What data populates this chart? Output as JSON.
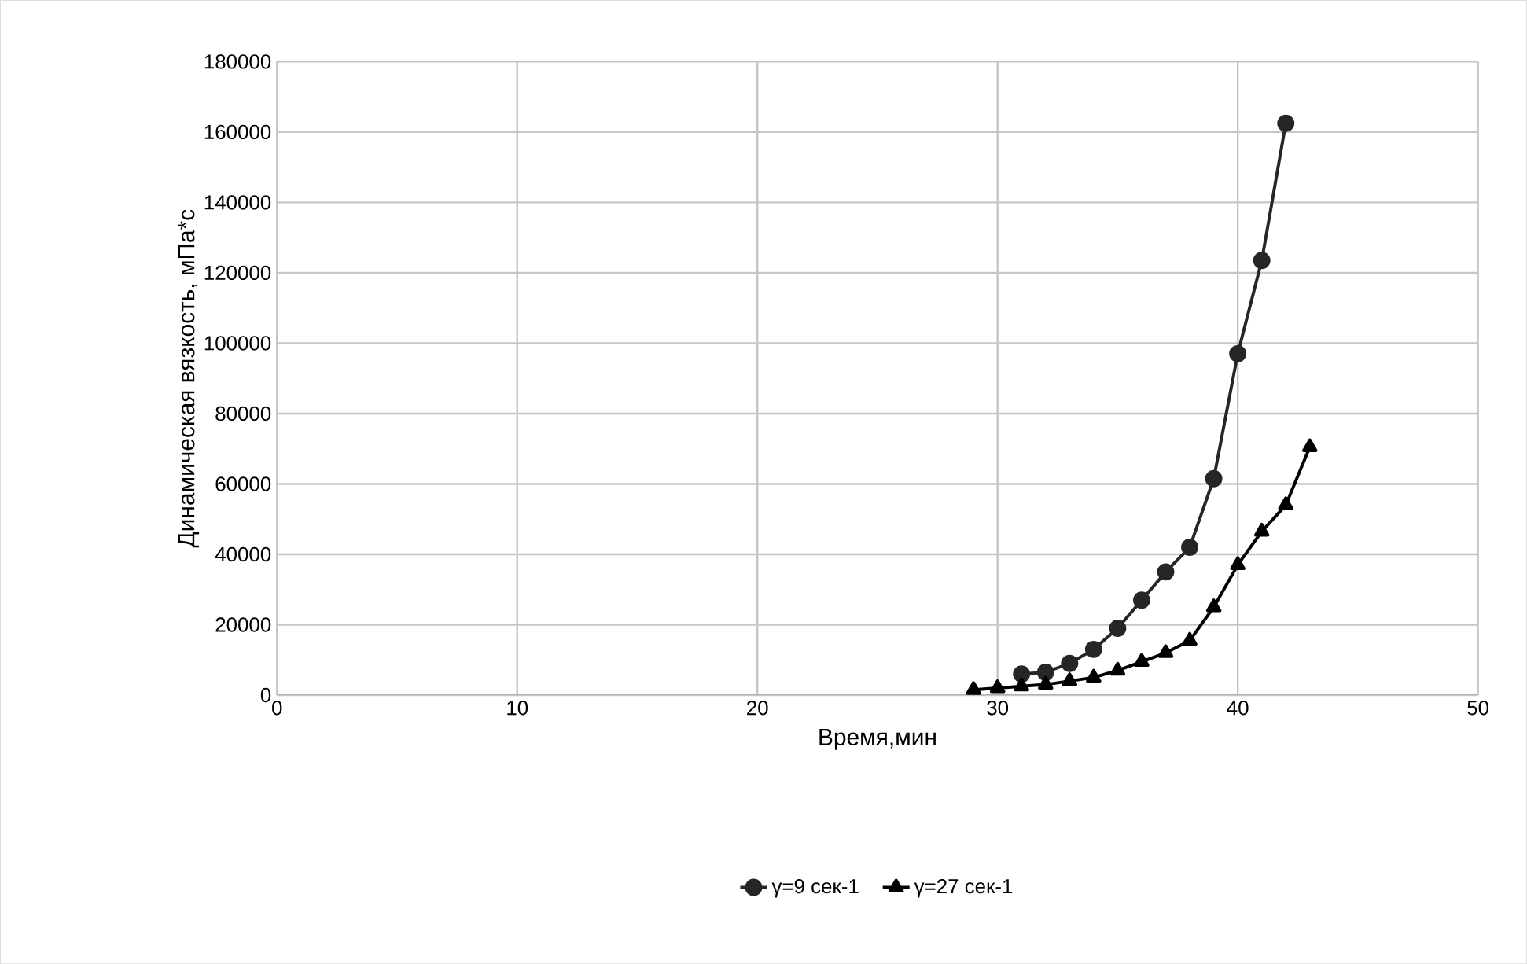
{
  "chart_data": {
    "type": "line",
    "xlabel": "Время,мин",
    "ylabel": "Динамическая вязкость, мПа*с",
    "xlim": [
      0,
      50
    ],
    "xticks": [
      0,
      10,
      20,
      30,
      40,
      50
    ],
    "ylim": [
      0,
      180000
    ],
    "yticks": [
      0,
      20000,
      40000,
      60000,
      80000,
      100000,
      120000,
      140000,
      160000,
      180000
    ],
    "grid": true,
    "legend": "bottom",
    "series": [
      {
        "name": "γ=9 сек-1",
        "color": "#262626",
        "marker": "circle",
        "x": [
          31,
          32,
          33,
          34,
          35,
          36,
          37,
          38,
          39,
          40,
          41,
          42
        ],
        "values": [
          6000,
          6500,
          9000,
          13000,
          19000,
          27000,
          35000,
          42000,
          61500,
          97000,
          123500,
          162500
        ]
      },
      {
        "name": "γ=27 сек-1",
        "color": "#000000",
        "marker": "triangle",
        "x": [
          29,
          30,
          31,
          32,
          33,
          34,
          35,
          36,
          37,
          38,
          39,
          40,
          41,
          42,
          43
        ],
        "values": [
          1500,
          2000,
          2500,
          3000,
          4000,
          5000,
          7000,
          9500,
          12000,
          15500,
          25000,
          37000,
          46500,
          54000,
          70500
        ]
      }
    ]
  }
}
